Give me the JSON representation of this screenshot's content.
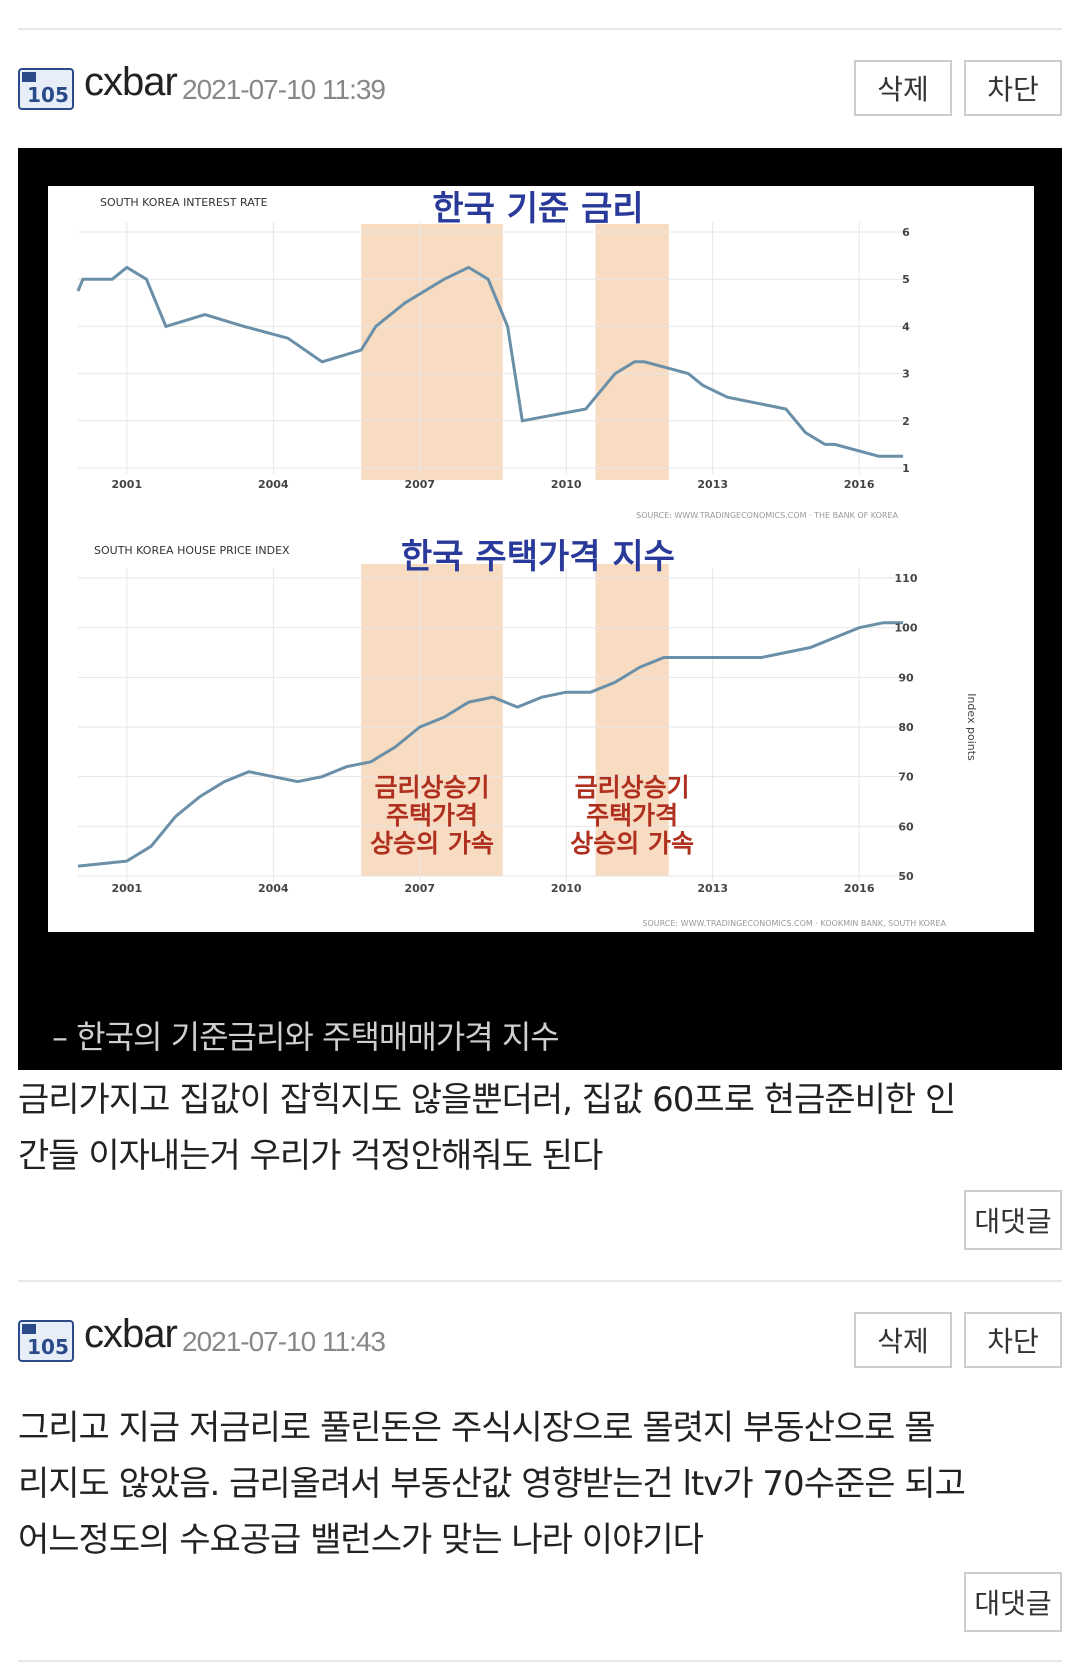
{
  "comments": [
    {
      "username": "cxbar",
      "timestamp": "2021-07-10 11:39",
      "delete_label": "삭제",
      "block_label": "차단",
      "reply_label": "대댓글",
      "caption": "– 한국의 기준금리와 주택매매가격 지수",
      "lines": [
        "금리가지고 집값이 잡힉지도 않을뿐더러, 집값 60프로 현금준비한 인",
        "간들 이자내는거 우리가 걱정안해줘도 된다"
      ]
    },
    {
      "username": "cxbar",
      "timestamp": "2021-07-10 11:43",
      "delete_label": "삭제",
      "block_label": "차단",
      "reply_label": "대댓글",
      "lines": [
        "그리고 지금 저금리로 풀린돈은 주식시장으로 몰렷지 부동산으로 몰",
        "리지도 않았음. 금리올려서 부동산값 영향받는건 ltv가 70수준은 되고",
        "어느정도의 수요공급 밸런스가 맞는 나라 이야기다"
      ]
    }
  ],
  "user_level_badge": "105",
  "colors": {
    "line": "#6a8fa8",
    "highlight": "#f8dcc2",
    "annotation": "#b03020",
    "title": "#2a3a9a"
  },
  "chart_data": [
    {
      "type": "line",
      "title": "한국 기준 금리",
      "subtitle": "SOUTH KOREA INTEREST RATE",
      "source": "SOURCE: WWW.TRADINGECONOMICS.COM · THE BANK OF KOREA",
      "xticks": [
        "2001",
        "2004",
        "2007",
        "2010",
        "2013",
        "2016"
      ],
      "yticks": [
        "1",
        "2",
        "3",
        "4",
        "5",
        "6"
      ],
      "ylim": [
        1,
        6
      ],
      "xlim": [
        2000.0,
        2017.0
      ],
      "x": [
        2000.0,
        2000.1,
        2000.7,
        2001.0,
        2001.4,
        2001.8,
        2002.6,
        2003.4,
        2004.3,
        2005.0,
        2005.8,
        2006.1,
        2006.4,
        2006.7,
        2007.5,
        2008.0,
        2008.4,
        2008.8,
        2009.1,
        2010.4,
        2010.6,
        2011.0,
        2011.4,
        2011.6,
        2012.5,
        2012.8,
        2013.3,
        2014.5,
        2014.7,
        2014.9,
        2015.3,
        2015.5,
        2016.4,
        2016.6,
        2016.9
      ],
      "values": [
        4.75,
        5.0,
        5.0,
        5.25,
        5.0,
        4.0,
        4.25,
        4.0,
        3.75,
        3.25,
        3.5,
        4.0,
        4.25,
        4.5,
        5.0,
        5.25,
        5.0,
        4.0,
        2.0,
        2.25,
        2.5,
        3.0,
        3.25,
        3.25,
        3.0,
        2.75,
        2.5,
        2.25,
        2.0,
        1.75,
        1.5,
        1.5,
        1.25,
        1.25,
        1.25
      ],
      "highlights": [
        [
          2005.8,
          2008.7
        ],
        [
          2010.6,
          2012.1
        ]
      ]
    },
    {
      "type": "line",
      "title": "한국 주택가격 지수",
      "subtitle": "SOUTH KOREA HOUSE PRICE INDEX",
      "source": "SOURCE: WWW.TRADINGECONOMICS.COM · KOOKMIN BANK, SOUTH KOREA",
      "ylabel": "Index points",
      "xticks": [
        "2001",
        "2004",
        "2007",
        "2010",
        "2013",
        "2016"
      ],
      "yticks": [
        "50",
        "60",
        "70",
        "80",
        "90",
        "100",
        "110"
      ],
      "ylim": [
        50,
        110
      ],
      "xlim": [
        2000.0,
        2017.0
      ],
      "x": [
        2000.0,
        2000.5,
        2001.0,
        2001.5,
        2002.0,
        2002.5,
        2003.0,
        2003.5,
        2004.0,
        2004.5,
        2005.0,
        2005.5,
        2006.0,
        2006.5,
        2007.0,
        2007.5,
        2008.0,
        2008.5,
        2009.0,
        2009.5,
        2010.0,
        2010.5,
        2011.0,
        2011.5,
        2012.0,
        2012.5,
        2013.0,
        2013.5,
        2014.0,
        2014.5,
        2015.0,
        2015.5,
        2016.0,
        2016.5,
        2016.9
      ],
      "values": [
        52,
        52.5,
        53,
        56,
        62,
        66,
        69,
        71,
        70,
        69,
        70,
        72,
        73,
        76,
        80,
        82,
        85,
        86,
        84,
        86,
        87,
        87,
        89,
        92,
        94,
        94,
        94,
        94,
        94,
        95,
        96,
        98,
        100,
        101,
        101
      ],
      "highlights": [
        [
          2005.8,
          2008.7
        ],
        [
          2010.6,
          2012.1
        ]
      ],
      "annotations": [
        {
          "lines": [
            "금리상승기",
            "주택가격",
            "상승의 가속"
          ]
        },
        {
          "lines": [
            "금리상승기",
            "주택가격",
            "상승의 가속"
          ]
        }
      ]
    }
  ]
}
